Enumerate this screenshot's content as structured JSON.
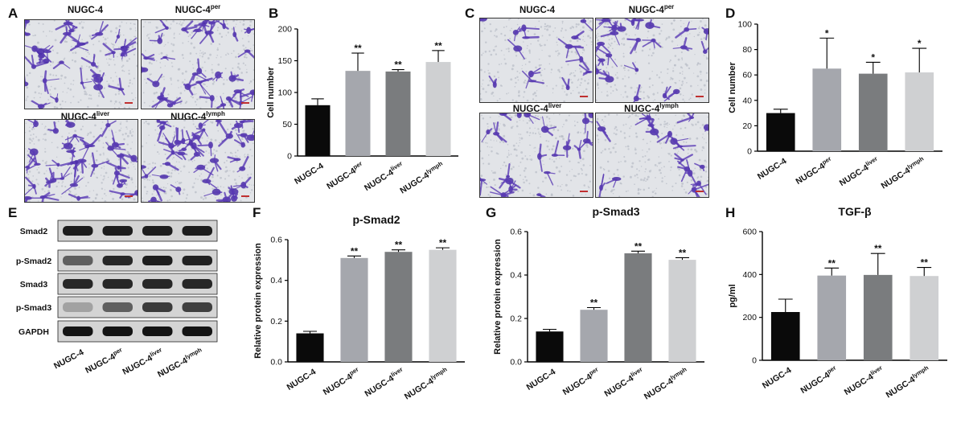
{
  "panel_letters": [
    "A",
    "B",
    "C",
    "D",
    "E",
    "F",
    "G",
    "H"
  ],
  "micro_A": [
    {
      "base": "NUGC-4",
      "sup": ""
    },
    {
      "base": "NUGC-4",
      "sup": "per"
    },
    {
      "base": "NUGC-4",
      "sup": "liver"
    },
    {
      "base": "NUGC-4",
      "sup": "lymph"
    }
  ],
  "micro_C": [
    {
      "base": "NUGC-4",
      "sup": ""
    },
    {
      "base": "NUGC-4",
      "sup": "per"
    },
    {
      "base": "NUGC-4",
      "sup": "liver"
    },
    {
      "base": "NUGC-4",
      "sup": "lymph"
    }
  ],
  "blot": {
    "rows": [
      "Smad2",
      "p-Smad2",
      "Smad3",
      "p-Smad3",
      "GAPDH"
    ],
    "lanes": [
      {
        "base": "NUGC-4",
        "sup": ""
      },
      {
        "base": "NUGC-4",
        "sup": "per"
      },
      {
        "base": "NUGC-4",
        "sup": "liver"
      },
      {
        "base": "NUGC-4",
        "sup": "lymph"
      }
    ],
    "intensity": [
      [
        0.9,
        0.9,
        0.9,
        0.9
      ],
      [
        0.55,
        0.85,
        0.9,
        0.88
      ],
      [
        0.85,
        0.85,
        0.85,
        0.85
      ],
      [
        0.2,
        0.55,
        0.75,
        0.72
      ],
      [
        0.95,
        0.95,
        0.95,
        0.95
      ]
    ]
  },
  "colors": {
    "black": "#0a0a0a",
    "gray1": "#a5a7ad",
    "gray2": "#7a7c7e",
    "gray3": "#cfd0d2"
  },
  "chart_data": [
    {
      "id": "B",
      "type": "bar",
      "title": "",
      "xlabel": "",
      "ylabel": "Cell number",
      "categories": [
        {
          "base": "NUGC-4",
          "sup": ""
        },
        {
          "base": "NUGC-4",
          "sup": "per"
        },
        {
          "base": "NUGC-4",
          "sup": "liver"
        },
        {
          "base": "NUGC-4",
          "sup": "lymph"
        }
      ],
      "values": [
        80,
        134,
        133,
        148
      ],
      "errors": [
        10,
        28,
        3,
        18
      ],
      "significance": [
        "",
        "**",
        "**",
        "**"
      ],
      "ylim": [
        0,
        200
      ],
      "yticks": [
        0,
        50,
        100,
        150,
        200
      ]
    },
    {
      "id": "D",
      "type": "bar",
      "title": "",
      "xlabel": "",
      "ylabel": "Cell number",
      "categories": [
        {
          "base": "NUGC-4",
          "sup": ""
        },
        {
          "base": "NUGC-4",
          "sup": "per"
        },
        {
          "base": "NUGC-4",
          "sup": "liver"
        },
        {
          "base": "NUGC-4",
          "sup": "lymph"
        }
      ],
      "values": [
        30,
        65,
        61,
        62
      ],
      "errors": [
        3,
        24,
        9,
        19
      ],
      "significance": [
        "",
        "*",
        "*",
        "*"
      ],
      "ylim": [
        0,
        100
      ],
      "yticks": [
        0,
        20,
        40,
        60,
        80,
        100
      ]
    },
    {
      "id": "F",
      "type": "bar",
      "title": "p-Smad2",
      "xlabel": "",
      "ylabel": "Relative protein expression",
      "categories": [
        {
          "base": "NUGC-4",
          "sup": ""
        },
        {
          "base": "NUGC-4",
          "sup": "per"
        },
        {
          "base": "NUGC-4",
          "sup": "liver"
        },
        {
          "base": "NUGC-4",
          "sup": "lymph"
        }
      ],
      "values": [
        0.14,
        0.51,
        0.54,
        0.55
      ],
      "errors": [
        0.01,
        0.01,
        0.01,
        0.01
      ],
      "significance": [
        "",
        "**",
        "**",
        "**"
      ],
      "ylim": [
        0,
        0.6
      ],
      "yticks": [
        "0.0",
        "0.2",
        "0.4",
        "0.6"
      ]
    },
    {
      "id": "G",
      "type": "bar",
      "title": "p-Smad3",
      "xlabel": "",
      "ylabel": "Relative protein expression",
      "categories": [
        {
          "base": "NUGC-4",
          "sup": ""
        },
        {
          "base": "NUGC-4",
          "sup": "per"
        },
        {
          "base": "NUGC-4",
          "sup": "liver"
        },
        {
          "base": "NUGC-4",
          "sup": "lymph"
        }
      ],
      "values": [
        0.14,
        0.24,
        0.5,
        0.47
      ],
      "errors": [
        0.01,
        0.01,
        0.01,
        0.01
      ],
      "significance": [
        "",
        "**",
        "**",
        "**"
      ],
      "ylim": [
        0,
        0.6
      ],
      "yticks": [
        "0.0",
        "0.2",
        "0.4",
        "0.6"
      ]
    },
    {
      "id": "H",
      "type": "bar",
      "title": "TGF-β",
      "xlabel": "",
      "ylabel": "pg/ml",
      "categories": [
        {
          "base": "NUGC-4",
          "sup": ""
        },
        {
          "base": "NUGC-4",
          "sup": "per"
        },
        {
          "base": "NUGC-4",
          "sup": "liver"
        },
        {
          "base": "NUGC-4",
          "sup": "lymph"
        }
      ],
      "values": [
        225,
        395,
        398,
        393
      ],
      "errors": [
        60,
        35,
        100,
        40
      ],
      "significance": [
        "",
        "**",
        "**",
        "**"
      ],
      "ylim": [
        0,
        600
      ],
      "yticks": [
        0,
        200,
        400,
        600
      ]
    }
  ]
}
